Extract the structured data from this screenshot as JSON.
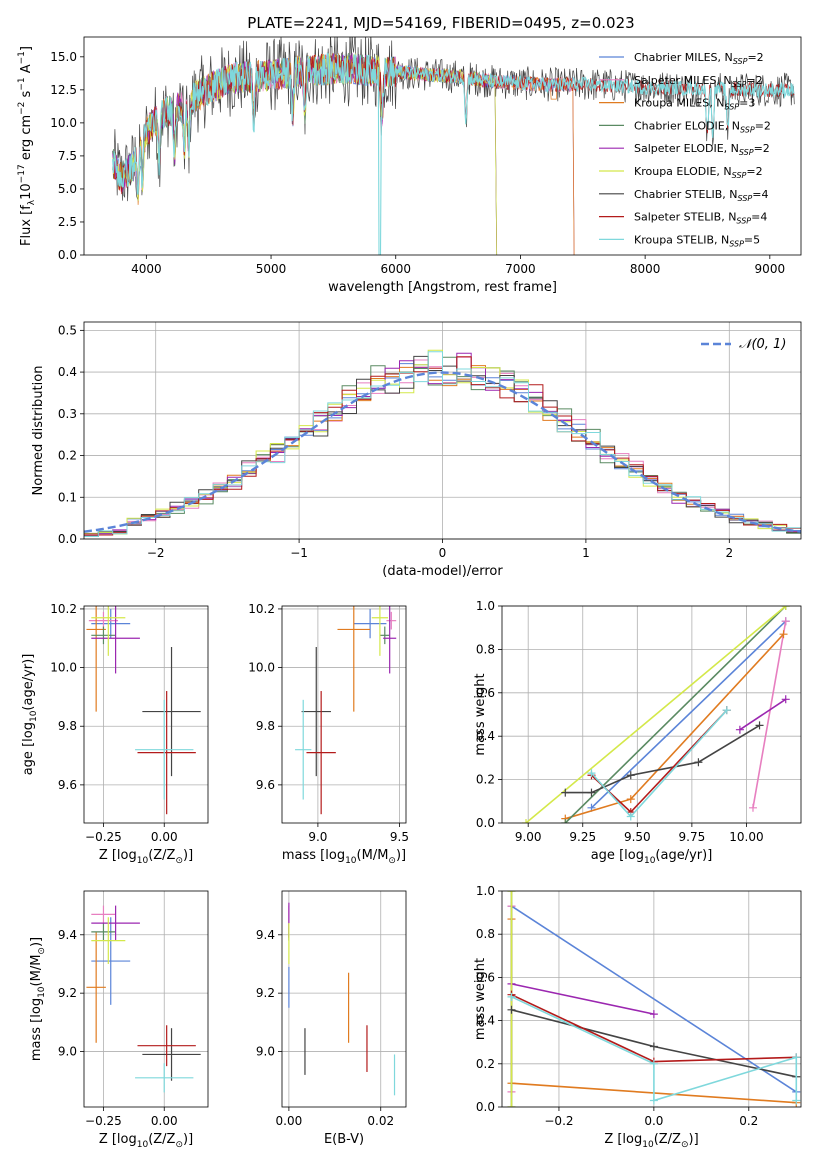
{
  "colors": {
    "Chabrier MILES": "#5b84d8",
    "Salpeter MILES": "#e77fc0",
    "Kroupa MILES": "#e07b20",
    "Chabrier ELODIE": "#5a8a62",
    "Salpeter ELODIE": "#9b27b0",
    "Kroupa ELODIE": "#d4e84a",
    "Chabrier STELIB": "#444444",
    "Salpeter STELIB": "#b31b1b",
    "Kroupa STELIB": "#7fd8dc"
  },
  "chart_data": [
    {
      "id": "spectrum",
      "type": "line",
      "title": "PLATE=2241, MJD=54169, FIBERID=0495, z=0.023",
      "xlabel": "wavelength [Angstrom, rest frame]",
      "ylabel": "Flux [f$_\\lambda$10$^{-17}$ erg cm$^{-2}$ s$^{-1}$ A$^{-1}$]",
      "xlim": [
        3500,
        9250
      ],
      "ylim": [
        0,
        16.5
      ],
      "xticks": [
        4000,
        5000,
        6000,
        7000,
        8000,
        9000
      ],
      "yticks": [
        0.0,
        2.5,
        5.0,
        7.5,
        10.0,
        12.5,
        15.0
      ],
      "grid": false,
      "legend_position": "right",
      "continuum_anchors": [
        [
          3730,
          7.0
        ],
        [
          3800,
          5.8
        ],
        [
          3900,
          6.8
        ],
        [
          3950,
          8.6
        ],
        [
          4050,
          10.0
        ],
        [
          4150,
          10.8
        ],
        [
          4300,
          11.4
        ],
        [
          4500,
          12.6
        ],
        [
          4700,
          13.4
        ],
        [
          5000,
          13.6
        ],
        [
          5300,
          14.0
        ],
        [
          5600,
          14.1
        ],
        [
          5900,
          13.9
        ],
        [
          6200,
          13.7
        ],
        [
          6500,
          13.5
        ],
        [
          6800,
          13.1
        ],
        [
          7200,
          12.9
        ],
        [
          7600,
          12.9
        ],
        [
          8000,
          12.7
        ],
        [
          8500,
          12.6
        ],
        [
          9000,
          12.5
        ],
        [
          9200,
          12.5
        ]
      ],
      "series": [
        {
          "key": "Chabrier MILES",
          "label_main": "Chabrier MILES, N",
          "label_sub": "SSP",
          "label_tail": "=2",
          "end": 7420
        },
        {
          "key": "Salpeter MILES",
          "label_main": "Salpeter MILES, N",
          "label_sub": "SSP",
          "label_tail": "=2",
          "end": 7420
        },
        {
          "key": "Kroupa MILES",
          "label_main": "Kroupa MILES, N",
          "label_sub": "SSP",
          "label_tail": "=3",
          "end": 7420
        },
        {
          "key": "Chabrier ELODIE",
          "label_main": "Chabrier ELODIE, N",
          "label_sub": "SSP",
          "label_tail": "=2",
          "end": 6800
        },
        {
          "key": "Salpeter ELODIE",
          "label_main": "Salpeter ELODIE, N",
          "label_sub": "SSP",
          "label_tail": "=2",
          "end": 6800
        },
        {
          "key": "Kroupa ELODIE",
          "label_main": "Kroupa ELODIE, N",
          "label_sub": "SSP",
          "label_tail": "=2",
          "end": 6800
        },
        {
          "key": "Chabrier STELIB",
          "label_main": "Chabrier STELIB, N",
          "label_sub": "SSP",
          "label_tail": "=4",
          "end": 9200
        },
        {
          "key": "Salpeter STELIB",
          "label_main": "Salpeter STELIB, N",
          "label_sub": "SSP",
          "label_tail": "=4",
          "end": 9200
        },
        {
          "key": "Kroupa STELIB",
          "label_main": "Kroupa STELIB, N",
          "label_sub": "SSP",
          "label_tail": "=5",
          "end": 9200
        }
      ]
    },
    {
      "id": "residuals",
      "type": "line",
      "xlabel": "(data-model)/error",
      "ylabel": "Normed distribution",
      "xlim": [
        -2.5,
        2.5
      ],
      "ylim": [
        0,
        0.52
      ],
      "xticks": [
        -2,
        -1,
        0,
        1,
        2
      ],
      "yticks": [
        0.0,
        0.1,
        0.2,
        0.3,
        0.4,
        0.5
      ],
      "grid": true,
      "bin_width": 0.1,
      "reference": {
        "name": "N(0,1)",
        "label_display": "𝒩(0, 1)",
        "style": "dashed",
        "color": "#5b84d8"
      },
      "legend_position": "top-right"
    },
    {
      "id": "age_vs_Z",
      "type": "scatter",
      "xlabel": "Z [log$_{10}$(Z/Z$_\\odot$)]",
      "ylabel": "age  [log$_{10}$(age/yr)]",
      "xlim": [
        -0.33,
        0.18
      ],
      "ylim": [
        9.47,
        10.21
      ],
      "xticks": [
        -0.25,
        0.0
      ],
      "xtick_labels": [
        "−0.25",
        "0.00"
      ],
      "yticks": [
        9.6,
        9.8,
        10.0,
        10.2
      ],
      "ytick_labels": [
        "9.6",
        "9.8",
        "10.0",
        "10.2"
      ],
      "grid": true,
      "points": [
        {
          "key": "Chabrier MILES",
          "x": -0.22,
          "xerr": 0.08,
          "y": 10.15,
          "yerr": 0.05
        },
        {
          "key": "Salpeter MILES",
          "x": -0.25,
          "xerr": 0.06,
          "y": 10.16,
          "yerr": 0.03
        },
        {
          "key": "Kroupa MILES",
          "x": -0.28,
          "xerr": 0.04,
          "y": 10.13,
          "yerr": 0.28
        },
        {
          "key": "Chabrier ELODIE",
          "x": -0.25,
          "xerr": 0.05,
          "y": 10.11,
          "yerr": 0.03
        },
        {
          "key": "Salpeter ELODIE",
          "x": -0.2,
          "xerr": 0.1,
          "y": 10.1,
          "yerr": 0.12
        },
        {
          "key": "Kroupa ELODIE",
          "x": -0.23,
          "xerr": 0.07,
          "y": 10.17,
          "yerr": 0.13
        },
        {
          "key": "Chabrier STELIB",
          "x": 0.03,
          "xerr": 0.12,
          "y": 9.85,
          "yerr": 0.22
        },
        {
          "key": "Salpeter STELIB",
          "x": 0.01,
          "xerr": 0.12,
          "y": 9.71,
          "yerr": 0.21
        },
        {
          "key": "Kroupa STELIB",
          "x": 0.0,
          "xerr": 0.12,
          "y": 9.72,
          "yerr": 0.17
        }
      ]
    },
    {
      "id": "age_vs_mass",
      "type": "scatter",
      "xlabel": "mass [log$_{10}$(M/M$_\\odot$)]",
      "ylabel": "",
      "xlim": [
        8.78,
        9.54
      ],
      "ylim": [
        9.47,
        10.21
      ],
      "xticks": [
        9.0,
        9.5
      ],
      "xtick_labels": [
        "9.0",
        "9.5"
      ],
      "yticks": [
        9.6,
        9.8,
        10.0,
        10.2
      ],
      "ytick_labels": [
        "9.6",
        "9.8",
        "10.0",
        "10.2"
      ],
      "grid": true,
      "points": [
        {
          "key": "Chabrier MILES",
          "x": 9.32,
          "xerr": 0.1,
          "y": 10.15,
          "yerr": 0.05
        },
        {
          "key": "Salpeter MILES",
          "x": 9.45,
          "xerr": 0.03,
          "y": 10.16,
          "yerr": 0.03
        },
        {
          "key": "Kroupa MILES",
          "x": 9.22,
          "xerr": 0.1,
          "y": 10.13,
          "yerr": 0.28
        },
        {
          "key": "Chabrier ELODIE",
          "x": 9.41,
          "xerr": 0.03,
          "y": 10.11,
          "yerr": 0.03
        },
        {
          "key": "Salpeter ELODIE",
          "x": 9.44,
          "xerr": 0.04,
          "y": 10.1,
          "yerr": 0.12
        },
        {
          "key": "Kroupa ELODIE",
          "x": 9.38,
          "xerr": 0.05,
          "y": 10.17,
          "yerr": 0.13
        },
        {
          "key": "Chabrier STELIB",
          "x": 8.99,
          "xerr": 0.09,
          "y": 9.85,
          "yerr": 0.22
        },
        {
          "key": "Salpeter STELIB",
          "x": 9.02,
          "xerr": 0.09,
          "y": 9.71,
          "yerr": 0.21
        },
        {
          "key": "Kroupa STELIB",
          "x": 8.91,
          "xerr": 0.05,
          "y": 9.72,
          "yerr": 0.17
        }
      ]
    },
    {
      "id": "massweight_vs_age",
      "type": "line",
      "xlabel": "age  [log$_{10}$(age/yr)]",
      "ylabel": "mass weight",
      "xlim": [
        8.88,
        10.25
      ],
      "ylim": [
        0,
        1.0
      ],
      "xticks": [
        9.0,
        9.25,
        9.5,
        9.75,
        10.0
      ],
      "xtick_labels": [
        "9.00",
        "9.25",
        "9.50",
        "9.75",
        "10.00"
      ],
      "yticks": [
        0.0,
        0.2,
        0.4,
        0.6,
        0.8,
        1.0
      ],
      "ytick_labels": [
        "0.0",
        "0.2",
        "0.4",
        "0.6",
        "0.8",
        "1.0"
      ],
      "grid": true,
      "series": [
        {
          "key": "Chabrier MILES",
          "points": [
            [
              9.29,
              0.07
            ],
            [
              10.18,
              0.93
            ]
          ]
        },
        {
          "key": "Salpeter MILES",
          "points": [
            [
              10.03,
              0.07
            ],
            [
              10.18,
              0.93
            ]
          ]
        },
        {
          "key": "Kroupa MILES",
          "points": [
            [
              9.17,
              0.02
            ],
            [
              9.47,
              0.11
            ],
            [
              10.17,
              0.87
            ]
          ]
        },
        {
          "key": "Chabrier ELODIE",
          "points": [
            [
              9.17,
              0.0
            ],
            [
              10.18,
              1.0
            ]
          ]
        },
        {
          "key": "Salpeter ELODIE",
          "points": [
            [
              9.97,
              0.43
            ],
            [
              10.18,
              0.57
            ]
          ]
        },
        {
          "key": "Kroupa ELODIE",
          "points": [
            [
              8.99,
              0.0
            ],
            [
              10.18,
              1.0
            ]
          ]
        },
        {
          "key": "Chabrier STELIB",
          "points": [
            [
              9.17,
              0.14
            ],
            [
              9.29,
              0.14
            ],
            [
              9.47,
              0.22
            ],
            [
              9.78,
              0.28
            ],
            [
              10.06,
              0.45
            ]
          ]
        },
        {
          "key": "Salpeter STELIB",
          "points": [
            [
              9.29,
              0.22
            ],
            [
              9.47,
              0.05
            ],
            [
              9.91,
              0.52
            ]
          ]
        },
        {
          "key": "Kroupa STELIB",
          "points": [
            [
              9.29,
              0.23
            ],
            [
              9.47,
              0.03
            ],
            [
              9.91,
              0.52
            ]
          ]
        }
      ]
    },
    {
      "id": "mass_vs_Z",
      "type": "scatter",
      "xlabel": "Z [log$_{10}$(Z/Z$_\\odot$)]",
      "ylabel": "mass [log$_{10}$(M/M$_\\odot$)]",
      "xlim": [
        -0.33,
        0.18
      ],
      "ylim": [
        8.81,
        9.55
      ],
      "xticks": [
        -0.25,
        0.0
      ],
      "xtick_labels": [
        "−0.25",
        "0.00"
      ],
      "yticks": [
        9.0,
        9.2,
        9.4
      ],
      "ytick_labels": [
        "9.0",
        "9.2",
        "9.4"
      ],
      "grid": true,
      "points": [
        {
          "key": "Chabrier MILES",
          "x": -0.22,
          "xerr": 0.08,
          "y": 9.31,
          "yerr": 0.15
        },
        {
          "key": "Salpeter MILES",
          "x": -0.25,
          "xerr": 0.05,
          "y": 9.47,
          "yerr": 0.03
        },
        {
          "key": "Kroupa MILES",
          "x": -0.28,
          "xerr": 0.04,
          "y": 9.22,
          "yerr": 0.19
        },
        {
          "key": "Chabrier ELODIE",
          "x": -0.25,
          "xerr": 0.05,
          "y": 9.41,
          "yerr": 0.03
        },
        {
          "key": "Salpeter ELODIE",
          "x": -0.2,
          "xerr": 0.1,
          "y": 9.44,
          "yerr": 0.06
        },
        {
          "key": "Kroupa ELODIE",
          "x": -0.23,
          "xerr": 0.07,
          "y": 9.38,
          "yerr": 0.08
        },
        {
          "key": "Chabrier STELIB",
          "x": 0.03,
          "xerr": 0.12,
          "y": 8.99,
          "yerr": 0.09
        },
        {
          "key": "Salpeter STELIB",
          "x": 0.01,
          "xerr": 0.12,
          "y": 9.02,
          "yerr": 0.07
        },
        {
          "key": "Kroupa STELIB",
          "x": 0.0,
          "xerr": 0.12,
          "y": 8.91,
          "yerr": 0.05
        }
      ]
    },
    {
      "id": "mass_vs_EBV",
      "type": "scatter",
      "xlabel": "E(B-V)",
      "ylabel": "",
      "xlim": [
        -0.0015,
        0.0255
      ],
      "ylim": [
        8.81,
        9.55
      ],
      "xticks": [
        0.0,
        0.02
      ],
      "xtick_labels": [
        "0.00",
        "0.02"
      ],
      "yticks": [
        9.0,
        9.2,
        9.4
      ],
      "ytick_labels": [
        "9.0",
        "9.2",
        "9.4"
      ],
      "grid": true,
      "points": [
        {
          "key": "Chabrier MILES",
          "x": 0.0,
          "xerr": 0,
          "y": 9.22,
          "yerr": 0.07
        },
        {
          "key": "Salpeter MILES",
          "x": 0.0,
          "xerr": 0,
          "y": 9.47,
          "yerr": 0.03
        },
        {
          "key": "Kroupa MILES",
          "x": 0.013,
          "xerr": 0,
          "y": 9.15,
          "yerr": 0.12
        },
        {
          "key": "Chabrier ELODIE",
          "x": 0.0,
          "xerr": 0,
          "y": 9.41,
          "yerr": 0.03
        },
        {
          "key": "Salpeter ELODIE",
          "x": 0.0,
          "xerr": 0,
          "y": 9.45,
          "yerr": 0.06
        },
        {
          "key": "Kroupa ELODIE",
          "x": 0.0,
          "xerr": 0,
          "y": 9.37,
          "yerr": 0.07
        },
        {
          "key": "Chabrier STELIB",
          "x": 0.0035,
          "xerr": 0,
          "y": 9.0,
          "yerr": 0.08
        },
        {
          "key": "Salpeter STELIB",
          "x": 0.017,
          "xerr": 0,
          "y": 9.01,
          "yerr": 0.08
        },
        {
          "key": "Kroupa STELIB",
          "x": 0.023,
          "xerr": 0,
          "y": 8.92,
          "yerr": 0.07
        }
      ]
    },
    {
      "id": "massweight_vs_Z",
      "type": "line",
      "xlabel": "Z [log$_{10}$(Z/Z$_\\odot$)]",
      "ylabel": "mass weight",
      "xlim": [
        -0.32,
        0.31
      ],
      "ylim": [
        0,
        1.0
      ],
      "xticks": [
        -0.2,
        0.0,
        0.2
      ],
      "xtick_labels": [
        "−0.2",
        "0.0",
        "0.2"
      ],
      "yticks": [
        0.0,
        0.2,
        0.4,
        0.6,
        0.8,
        1.0
      ],
      "ytick_labels": [
        "0.0",
        "0.2",
        "0.4",
        "0.6",
        "0.8",
        "1.0"
      ],
      "grid": true,
      "series": [
        {
          "key": "Chabrier MILES",
          "points": [
            [
              -0.3,
              0.93
            ],
            [
              0.3,
              0.07
            ]
          ]
        },
        {
          "key": "Salpeter MILES",
          "points": [
            [
              -0.3,
              0.93
            ],
            [
              -0.3,
              0.07
            ]
          ]
        },
        {
          "key": "Kroupa MILES",
          "points": [
            [
              -0.3,
              0.87
            ],
            [
              -0.3,
              0.11
            ],
            [
              0.3,
              0.02
            ]
          ]
        },
        {
          "key": "Chabrier ELODIE",
          "points": [
            [
              -0.3,
              1.0
            ],
            [
              -0.3,
              0.0
            ]
          ]
        },
        {
          "key": "Salpeter ELODIE",
          "points": [
            [
              -0.3,
              0.57
            ],
            [
              0.0,
              0.43
            ]
          ]
        },
        {
          "key": "Kroupa ELODIE",
          "points": [
            [
              -0.3,
              1.0
            ],
            [
              -0.3,
              0.0
            ]
          ]
        },
        {
          "key": "Chabrier STELIB",
          "points": [
            [
              -0.3,
              0.45
            ],
            [
              0.0,
              0.28
            ],
            [
              0.3,
              0.14
            ]
          ]
        },
        {
          "key": "Salpeter STELIB",
          "points": [
            [
              -0.3,
              0.52
            ],
            [
              0.0,
              0.21
            ],
            [
              0.3,
              0.23
            ]
          ]
        },
        {
          "key": "Kroupa STELIB",
          "points": [
            [
              -0.3,
              0.51
            ],
            [
              0.0,
              0.2
            ],
            [
              0.0,
              0.03
            ],
            [
              0.3,
              0.23
            ],
            [
              0.3,
              0.03
            ]
          ]
        }
      ]
    }
  ]
}
